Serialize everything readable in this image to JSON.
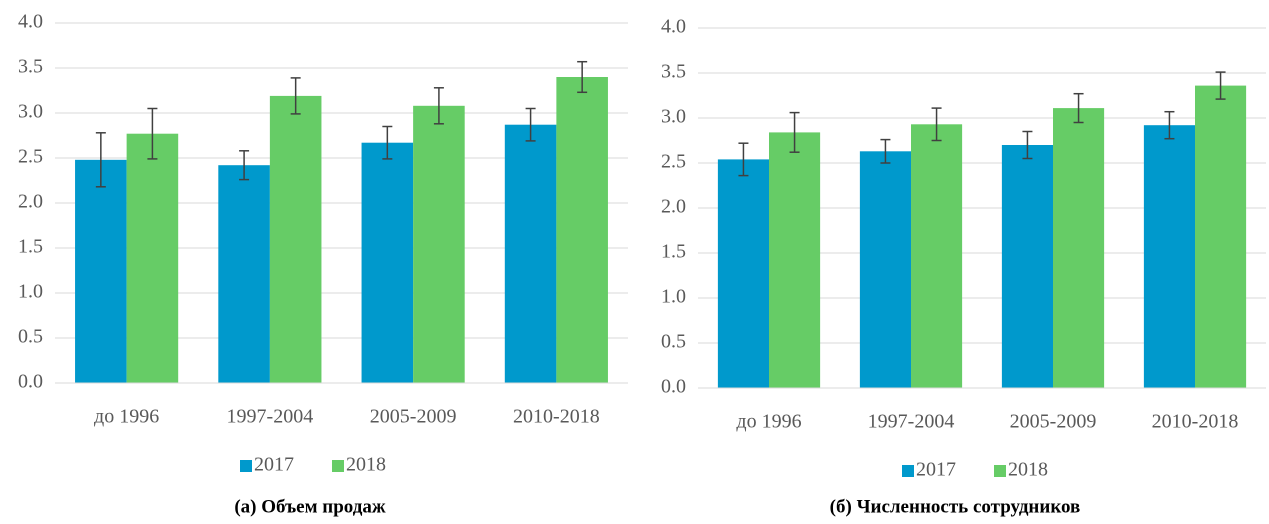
{
  "chart_data": [
    {
      "type": "bar",
      "title": "(а) Объем продаж",
      "categories": [
        "до 1996",
        "1997-2004",
        "2005-2009",
        "2010-2018"
      ],
      "series": [
        {
          "name": "2017",
          "color": "#0099cc",
          "values": [
            2.48,
            2.42,
            2.67,
            2.87
          ],
          "errors": [
            0.3,
            0.16,
            0.18,
            0.18
          ]
        },
        {
          "name": "2018",
          "color": "#66cc66",
          "values": [
            2.77,
            3.19,
            3.08,
            3.4
          ],
          "errors": [
            0.28,
            0.2,
            0.2,
            0.17
          ]
        }
      ],
      "ylim": [
        0,
        4
      ],
      "yticks": [
        {
          "value": 0,
          "label": "0.0"
        },
        0.5,
        {
          "value": 1,
          "label": "1.0"
        },
        1.5,
        {
          "value": 2,
          "label": "2.0"
        },
        2.5,
        {
          "value": 3,
          "label": "3.0"
        },
        3.5,
        {
          "value": 4,
          "label": "4.0"
        }
      ],
      "grid": true,
      "legend": "bottom"
    },
    {
      "type": "bar",
      "title": "(б) Численность сотрудников",
      "categories": [
        "до 1996",
        "1997-2004",
        "2005-2009",
        "2010-2018"
      ],
      "series": [
        {
          "name": "2017",
          "color": "#0099cc",
          "values": [
            2.54,
            2.63,
            2.7,
            2.92
          ],
          "errors": [
            0.18,
            0.13,
            0.15,
            0.15
          ]
        },
        {
          "name": "2018",
          "color": "#66cc66",
          "values": [
            2.84,
            2.93,
            3.11,
            3.36
          ],
          "errors": [
            0.22,
            0.18,
            0.16,
            0.15
          ]
        }
      ],
      "ylim": [
        0,
        4
      ],
      "yticks": [
        {
          "value": 0,
          "label": "0.0"
        },
        0.5,
        {
          "value": 1,
          "label": "1.0"
        },
        1.5,
        {
          "value": 2,
          "label": "2.0"
        },
        2.5,
        {
          "value": 3,
          "label": "3.0"
        },
        3.5,
        {
          "value": 4,
          "label": "4.0"
        }
      ],
      "grid": true,
      "legend": "bottom"
    }
  ]
}
